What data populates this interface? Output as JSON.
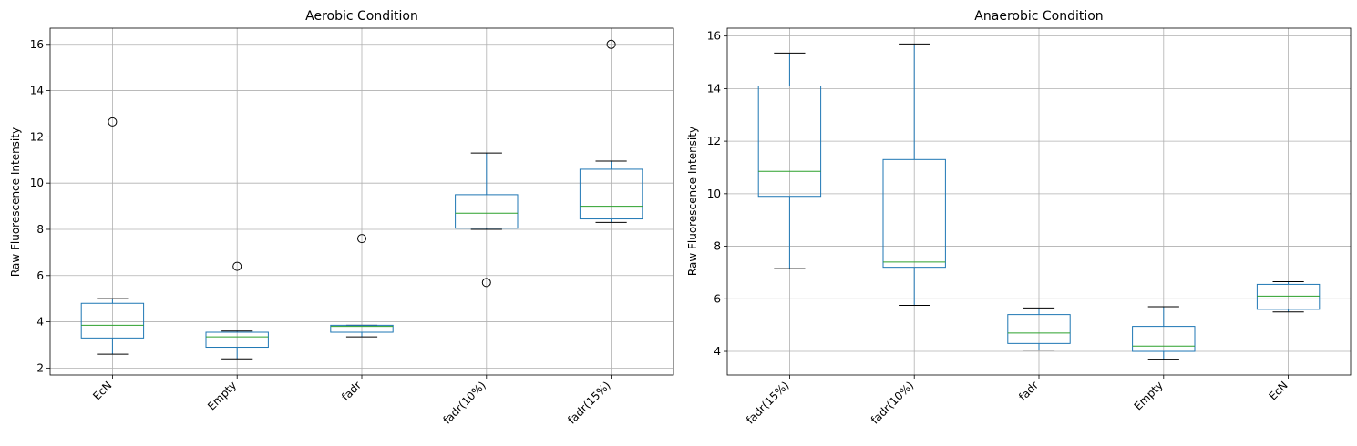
{
  "chart_data": [
    {
      "type": "box",
      "title": "Aerobic Condition",
      "xlabel": "",
      "ylabel": "Raw Fluorescence Intensity",
      "ylim": [
        1.7,
        16.7
      ],
      "yticks": [
        2,
        4,
        6,
        8,
        10,
        12,
        14,
        16
      ],
      "grid": true,
      "categories": [
        "EcN",
        "Empty",
        "fadr",
        "fadr(10%)",
        "fadr(15%)"
      ],
      "boxes": [
        {
          "whislo": 2.6,
          "q1": 3.3,
          "med": 3.85,
          "q3": 4.8,
          "whishi": 5.0,
          "fliers": [
            12.65
          ]
        },
        {
          "whislo": 2.4,
          "q1": 2.9,
          "med": 3.35,
          "q3": 3.55,
          "whishi": 3.6,
          "fliers": [
            6.4
          ]
        },
        {
          "whislo": 3.35,
          "q1": 3.55,
          "med": 3.8,
          "q3": 3.85,
          "whishi": 3.85,
          "fliers": [
            7.6
          ]
        },
        {
          "whislo": 8.0,
          "q1": 8.05,
          "med": 8.7,
          "q3": 9.5,
          "whishi": 11.3,
          "fliers": [
            5.7
          ]
        },
        {
          "whislo": 8.3,
          "q1": 8.45,
          "med": 9.0,
          "q3": 10.6,
          "whishi": 10.95,
          "fliers": [
            16.0
          ]
        }
      ]
    },
    {
      "type": "box",
      "title": "Anaerobic Condition",
      "xlabel": "",
      "ylabel": "Raw Fluorescence Intensity",
      "ylim": [
        3.1,
        16.3
      ],
      "yticks": [
        4,
        6,
        8,
        10,
        12,
        14,
        16
      ],
      "grid": true,
      "categories": [
        "fadr(15%)",
        "fadr(10%)",
        "fadr",
        "Empty",
        "EcN"
      ],
      "boxes": [
        {
          "whislo": 7.15,
          "q1": 9.9,
          "med": 10.85,
          "q3": 14.1,
          "whishi": 15.35,
          "fliers": []
        },
        {
          "whislo": 5.75,
          "q1": 7.2,
          "med": 7.4,
          "q3": 11.3,
          "whishi": 15.7,
          "fliers": []
        },
        {
          "whislo": 4.05,
          "q1": 4.3,
          "med": 4.7,
          "q3": 5.4,
          "whishi": 5.65,
          "fliers": []
        },
        {
          "whislo": 3.7,
          "q1": 4.0,
          "med": 4.2,
          "q3": 4.95,
          "whishi": 5.7,
          "fliers": []
        },
        {
          "whislo": 5.5,
          "q1": 5.6,
          "med": 6.1,
          "q3": 6.55,
          "whishi": 6.65,
          "fliers": []
        }
      ]
    }
  ]
}
